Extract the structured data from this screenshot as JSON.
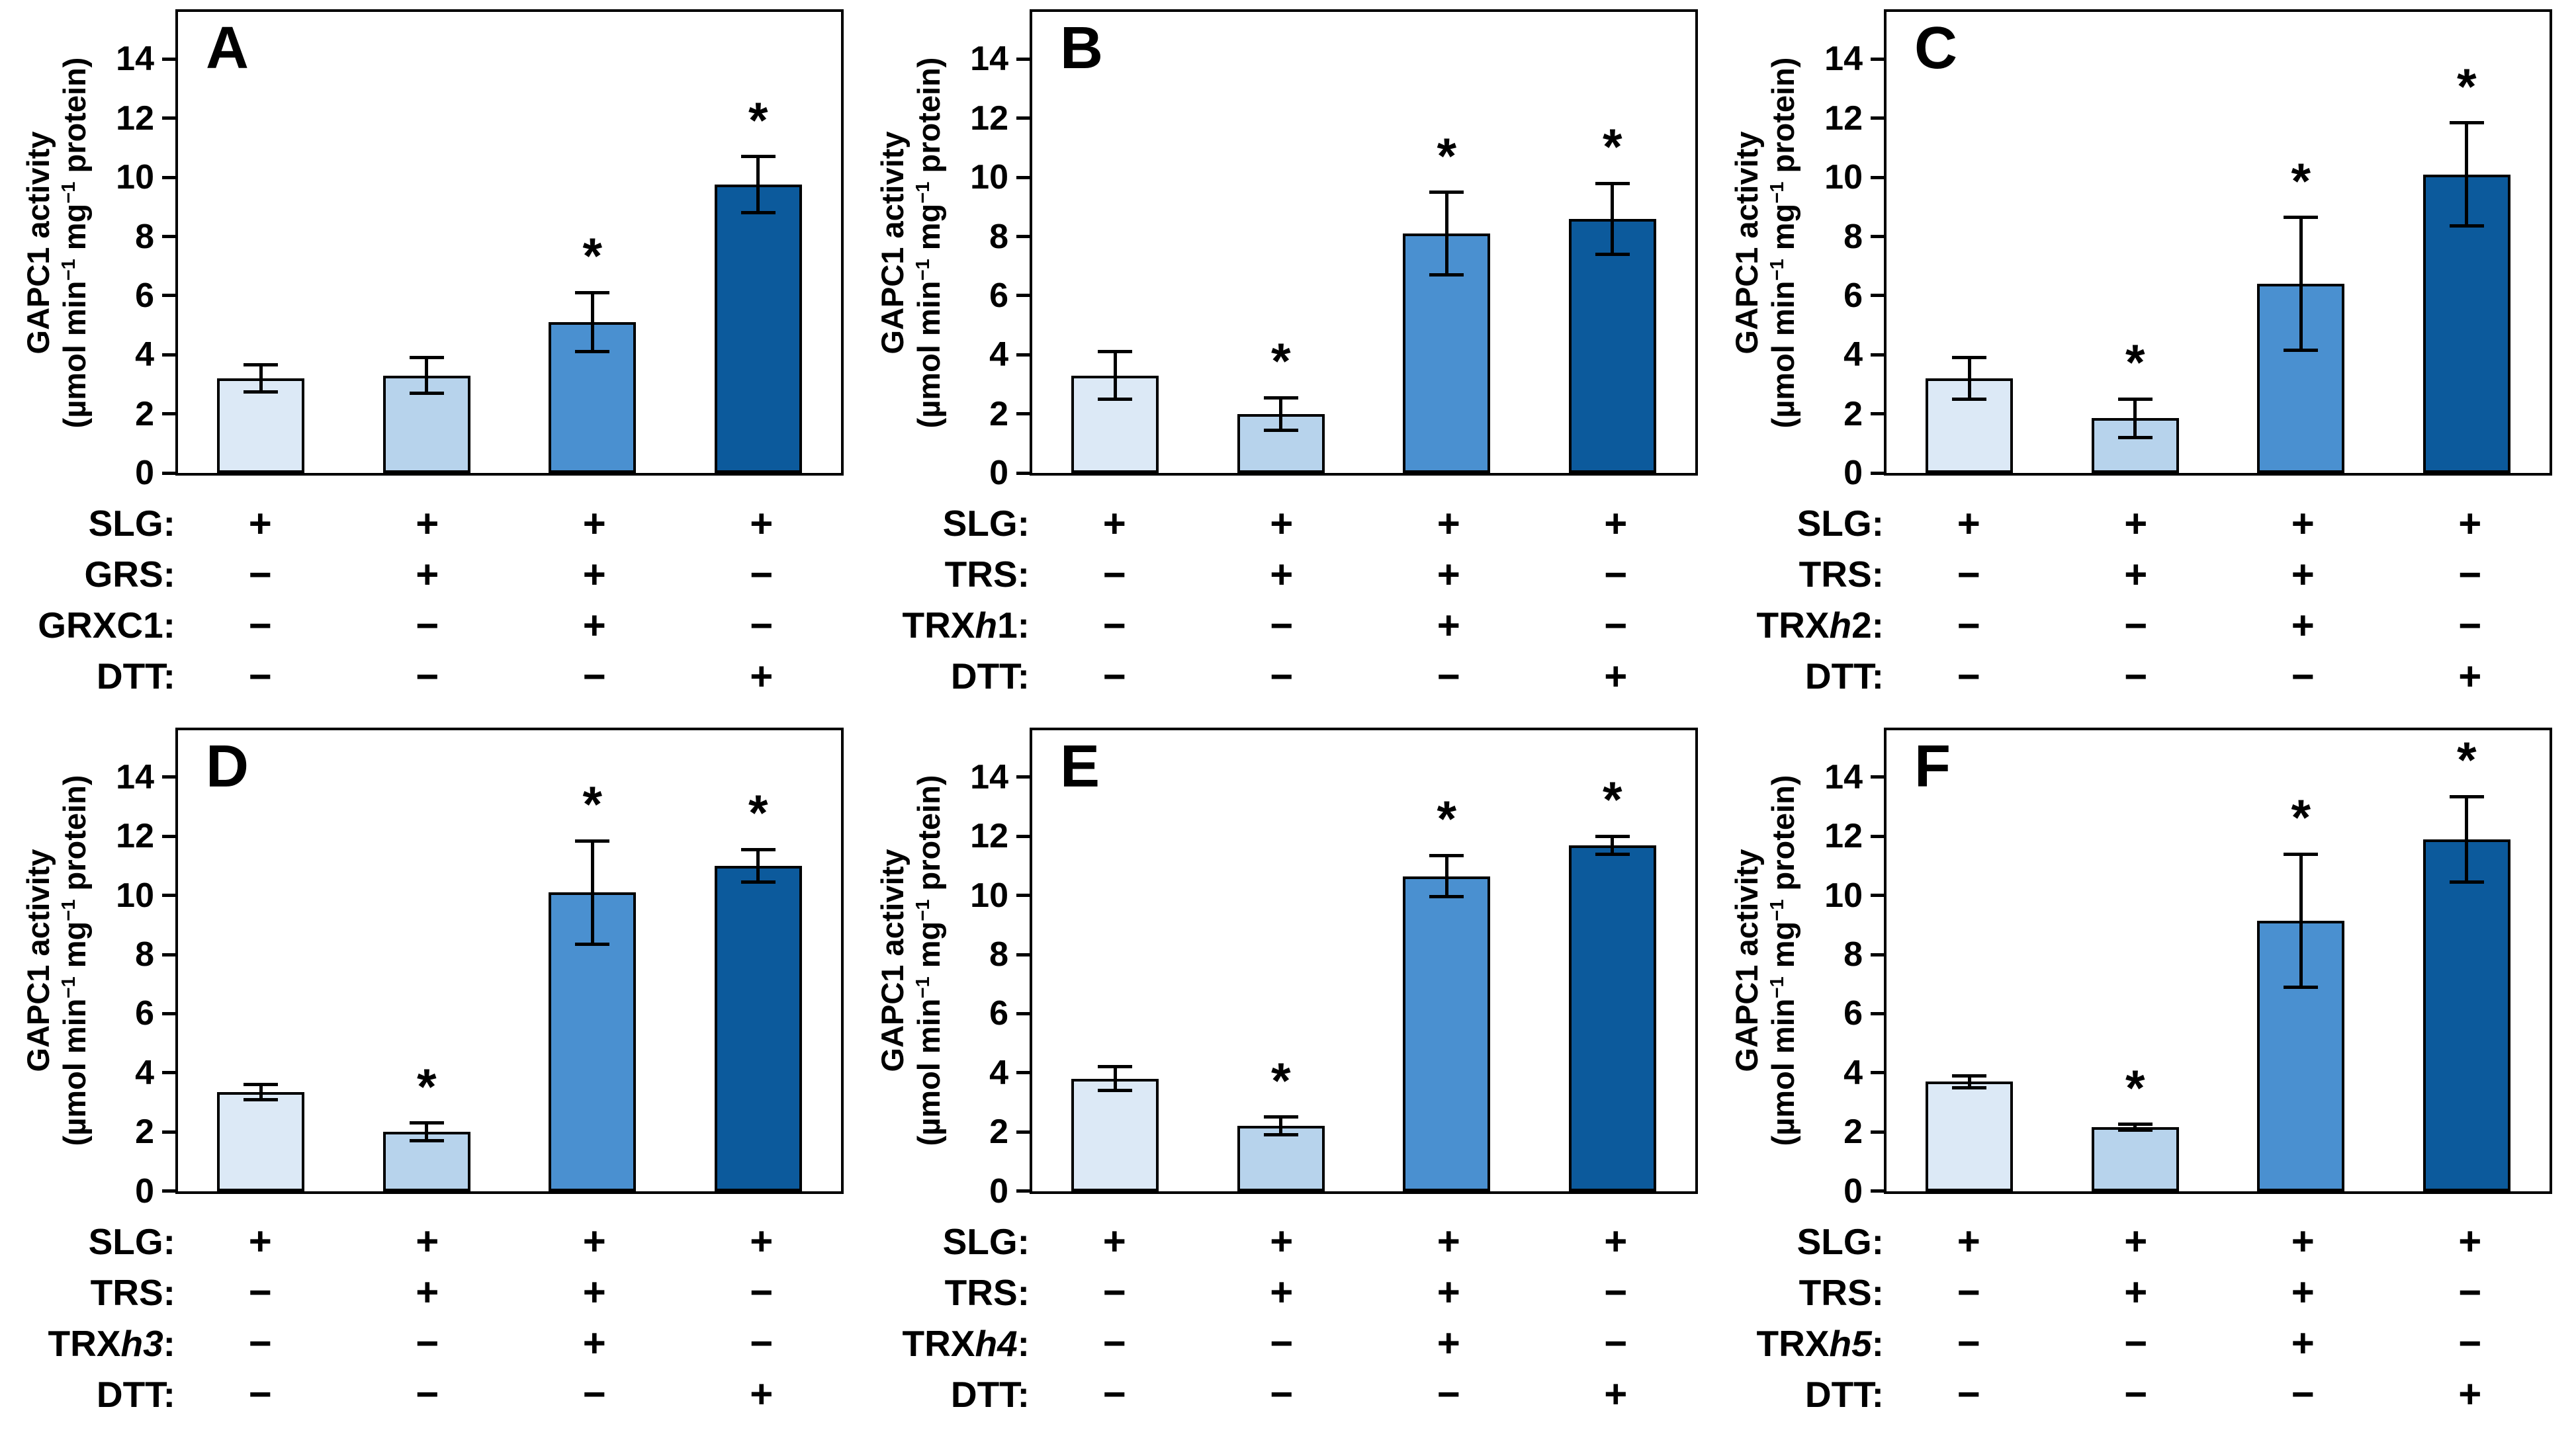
{
  "chart_data": {
    "type": "bar",
    "title": "",
    "ylabel_line1": "GAPC1 activity",
    "ylabel_line2_segments": [
      [
        "(µmol min",
        false
      ],
      [
        "−1",
        true
      ],
      [
        " mg",
        false
      ],
      [
        "−1",
        true
      ],
      [
        " protein)",
        false
      ]
    ],
    "ylim": [
      0,
      15.6
    ],
    "yticks": [
      0,
      2,
      4,
      6,
      8,
      10,
      12,
      14
    ],
    "grid": "off",
    "significance_marker": "*",
    "bar_colors": [
      "#dce9f6",
      "#b7d3ec",
      "#4a90d0",
      "#0c5a9c"
    ],
    "bar_border_color": "#000000",
    "panels": [
      {
        "label": "A",
        "bars": [
          {
            "value": 3.2,
            "err": 0.45,
            "sig": false
          },
          {
            "value": 3.3,
            "err": 0.6,
            "sig": false
          },
          {
            "value": 5.1,
            "err": 1.0,
            "sig": true
          },
          {
            "value": 9.75,
            "err": 0.95,
            "sig": true
          }
        ],
        "rows": [
          {
            "name_segments": [
              [
                "SLG:",
                false
              ]
            ],
            "signs": [
              "+",
              "+",
              "+",
              "+"
            ]
          },
          {
            "name_segments": [
              [
                "GRS:",
                false
              ]
            ],
            "signs": [
              "−",
              "+",
              "+",
              "−"
            ]
          },
          {
            "name_segments": [
              [
                "GRXC1:",
                false
              ]
            ],
            "signs": [
              "−",
              "−",
              "+",
              "−"
            ]
          },
          {
            "name_segments": [
              [
                "DTT:",
                false
              ]
            ],
            "signs": [
              "−",
              "−",
              "−",
              "+"
            ]
          }
        ]
      },
      {
        "label": "B",
        "bars": [
          {
            "value": 3.3,
            "err": 0.8,
            "sig": false
          },
          {
            "value": 2.0,
            "err": 0.55,
            "sig": true
          },
          {
            "value": 8.1,
            "err": 1.4,
            "sig": true
          },
          {
            "value": 8.6,
            "err": 1.2,
            "sig": true
          }
        ],
        "rows": [
          {
            "name_segments": [
              [
                "SLG:",
                false
              ]
            ],
            "signs": [
              "+",
              "+",
              "+",
              "+"
            ]
          },
          {
            "name_segments": [
              [
                "TRS:",
                false
              ]
            ],
            "signs": [
              "−",
              "+",
              "+",
              "−"
            ]
          },
          {
            "name_segments": [
              [
                "TRX",
                false
              ],
              [
                "h",
                true
              ],
              [
                "1:",
                false
              ]
            ],
            "signs": [
              "−",
              "−",
              "+",
              "−"
            ]
          },
          {
            "name_segments": [
              [
                "DTT:",
                false
              ]
            ],
            "signs": [
              "−",
              "−",
              "−",
              "+"
            ]
          }
        ]
      },
      {
        "label": "C",
        "bars": [
          {
            "value": 3.2,
            "err": 0.7,
            "sig": false
          },
          {
            "value": 1.85,
            "err": 0.65,
            "sig": true
          },
          {
            "value": 6.4,
            "err": 2.25,
            "sig": true
          },
          {
            "value": 10.1,
            "err": 1.75,
            "sig": true
          }
        ],
        "rows": [
          {
            "name_segments": [
              [
                "SLG:",
                false
              ]
            ],
            "signs": [
              "+",
              "+",
              "+",
              "+"
            ]
          },
          {
            "name_segments": [
              [
                "TRS:",
                false
              ]
            ],
            "signs": [
              "−",
              "+",
              "+",
              "−"
            ]
          },
          {
            "name_segments": [
              [
                "TRX",
                false
              ],
              [
                "h",
                true
              ],
              [
                "2:",
                false
              ]
            ],
            "signs": [
              "−",
              "−",
              "+",
              "−"
            ]
          },
          {
            "name_segments": [
              [
                "DTT:",
                false
              ]
            ],
            "signs": [
              "−",
              "−",
              "−",
              "+"
            ]
          }
        ]
      },
      {
        "label": "D",
        "bars": [
          {
            "value": 3.35,
            "err": 0.25,
            "sig": false
          },
          {
            "value": 2.0,
            "err": 0.3,
            "sig": true
          },
          {
            "value": 10.1,
            "err": 1.75,
            "sig": true
          },
          {
            "value": 11.0,
            "err": 0.55,
            "sig": true
          }
        ],
        "rows": [
          {
            "name_segments": [
              [
                "SLG:",
                false
              ]
            ],
            "signs": [
              "+",
              "+",
              "+",
              "+"
            ]
          },
          {
            "name_segments": [
              [
                "TRS:",
                false
              ]
            ],
            "signs": [
              "−",
              "+",
              "+",
              "−"
            ]
          },
          {
            "name_segments": [
              [
                "TRX",
                false
              ],
              [
                "h3",
                true
              ],
              [
                ":",
                false
              ]
            ],
            "signs": [
              "−",
              "−",
              "+",
              "−"
            ]
          },
          {
            "name_segments": [
              [
                "DTT:",
                false
              ]
            ],
            "signs": [
              "−",
              "−",
              "−",
              "+"
            ]
          }
        ]
      },
      {
        "label": "E",
        "bars": [
          {
            "value": 3.8,
            "err": 0.4,
            "sig": false
          },
          {
            "value": 2.2,
            "err": 0.3,
            "sig": true
          },
          {
            "value": 10.65,
            "err": 0.7,
            "sig": true
          },
          {
            "value": 11.7,
            "err": 0.3,
            "sig": true
          }
        ],
        "rows": [
          {
            "name_segments": [
              [
                "SLG:",
                false
              ]
            ],
            "signs": [
              "+",
              "+",
              "+",
              "+"
            ]
          },
          {
            "name_segments": [
              [
                "TRS:",
                false
              ]
            ],
            "signs": [
              "−",
              "+",
              "+",
              "−"
            ]
          },
          {
            "name_segments": [
              [
                "TRX",
                false
              ],
              [
                "h4",
                true
              ],
              [
                ":",
                false
              ]
            ],
            "signs": [
              "−",
              "−",
              "+",
              "−"
            ]
          },
          {
            "name_segments": [
              [
                "DTT:",
                false
              ]
            ],
            "signs": [
              "−",
              "−",
              "−",
              "+"
            ]
          }
        ]
      },
      {
        "label": "F",
        "bars": [
          {
            "value": 3.7,
            "err": 0.2,
            "sig": false
          },
          {
            "value": 2.15,
            "err": 0.1,
            "sig": true
          },
          {
            "value": 9.15,
            "err": 2.25,
            "sig": true
          },
          {
            "value": 11.9,
            "err": 1.45,
            "sig": true
          }
        ],
        "rows": [
          {
            "name_segments": [
              [
                "SLG:",
                false
              ]
            ],
            "signs": [
              "+",
              "+",
              "+",
              "+"
            ]
          },
          {
            "name_segments": [
              [
                "TRS:",
                false
              ]
            ],
            "signs": [
              "−",
              "+",
              "+",
              "−"
            ]
          },
          {
            "name_segments": [
              [
                "TRX",
                false
              ],
              [
                "h5",
                true
              ],
              [
                ":",
                false
              ]
            ],
            "signs": [
              "−",
              "−",
              "+",
              "−"
            ]
          },
          {
            "name_segments": [
              [
                "DTT:",
                false
              ]
            ],
            "signs": [
              "−",
              "−",
              "−",
              "+"
            ]
          }
        ]
      }
    ]
  }
}
